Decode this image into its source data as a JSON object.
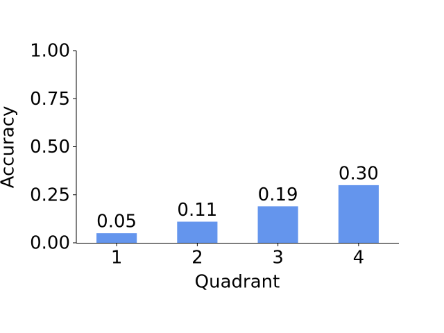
{
  "chart_data": {
    "type": "bar",
    "x_label": "Quadrant",
    "y_label": "Accuracy",
    "categories": [
      "1",
      "2",
      "3",
      "4"
    ],
    "values": [
      0.05,
      0.11,
      0.19,
      0.3
    ],
    "value_labels": [
      "0.05",
      "0.11",
      "0.19",
      "0.30"
    ],
    "color": "#6495ed",
    "ylim": [
      0,
      1
    ],
    "yticks": [
      {
        "value": 0,
        "label": "0.00"
      },
      {
        "value": 0.25,
        "label": "0.25"
      },
      {
        "value": 0.5,
        "label": "0.50"
      },
      {
        "value": 0.75,
        "label": "0.75"
      },
      {
        "value": 1,
        "label": "1.00"
      }
    ],
    "grid": false
  }
}
